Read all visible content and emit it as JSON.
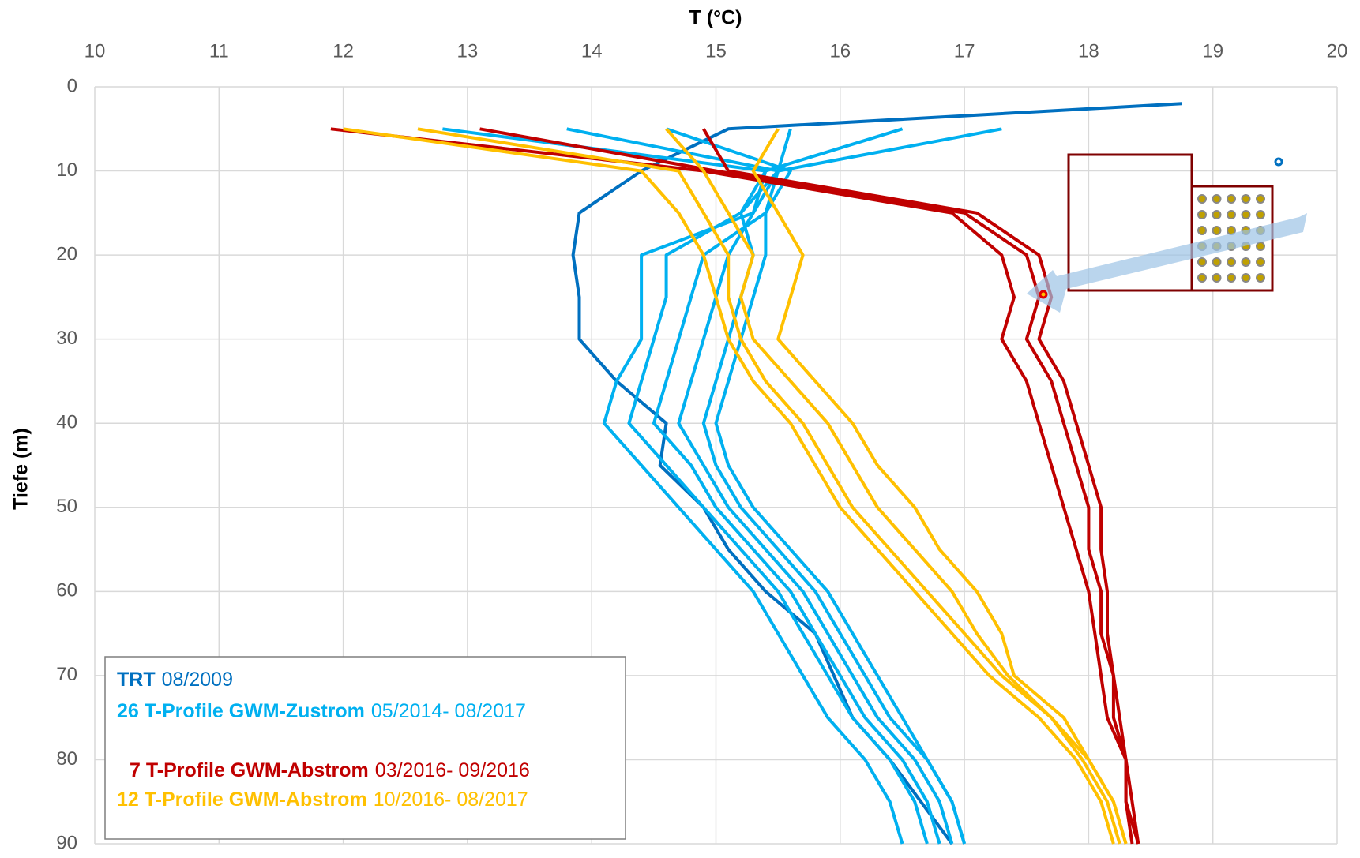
{
  "chart_data": {
    "type": "line",
    "title": "T (°C)",
    "y_label": "Tiefe (m)",
    "xlim": [
      10,
      20
    ],
    "xticks": [
      10,
      11,
      12,
      13,
      14,
      15,
      16,
      17,
      18,
      19,
      20
    ],
    "ylim": [
      0,
      90
    ],
    "yticks": [
      0,
      10,
      20,
      30,
      40,
      50,
      60,
      70,
      80,
      90
    ],
    "y_inverted": true,
    "grid": true,
    "depths": [
      2,
      5,
      10,
      15,
      20,
      25,
      30,
      35,
      40,
      45,
      50,
      55,
      60,
      65,
      70,
      75,
      80,
      85,
      90
    ],
    "series": [
      {
        "name": "TRT",
        "period": "08/2009",
        "color": "#0070c0",
        "profiles": [
          [
            18.75,
            15.1,
            14.4,
            13.9,
            13.85,
            13.9,
            13.9,
            14.2,
            14.6,
            14.55,
            14.9,
            15.1,
            15.4,
            15.8,
            15.95,
            16.1,
            16.4,
            16.65,
            16.9
          ]
        ]
      },
      {
        "name": "26 T-Profile GWM-Zustrom",
        "period": "05/2014- 08/2017",
        "color": "#00b0f0",
        "profiles": [
          [
            null,
            12.8,
            15.4,
            15.3,
            14.4,
            14.4,
            14.4,
            14.2,
            14.1,
            14.4,
            14.7,
            15.0,
            15.3,
            15.5,
            15.7,
            15.9,
            16.2,
            16.4,
            16.5
          ],
          [
            null,
            13.8,
            15.5,
            15.2,
            14.6,
            14.6,
            14.5,
            14.4,
            14.3,
            14.6,
            14.9,
            15.2,
            15.5,
            15.7,
            15.9,
            16.1,
            16.4,
            16.6,
            16.7
          ],
          [
            null,
            14.6,
            15.6,
            15.4,
            14.9,
            14.8,
            14.7,
            14.6,
            14.5,
            14.8,
            15.0,
            15.3,
            15.6,
            15.8,
            16.0,
            16.2,
            16.5,
            16.7,
            16.8
          ],
          [
            null,
            15.6,
            15.5,
            15.3,
            15.1,
            15.0,
            14.9,
            14.8,
            14.7,
            14.9,
            15.1,
            15.4,
            15.7,
            15.9,
            16.1,
            16.3,
            16.6,
            16.8,
            16.9
          ],
          [
            null,
            16.5,
            15.4,
            15.2,
            15.3,
            15.2,
            15.1,
            15.0,
            14.9,
            15.0,
            15.2,
            15.5,
            15.8,
            16.0,
            16.2,
            16.4,
            16.7,
            16.9,
            17.0
          ],
          [
            null,
            17.3,
            15.5,
            15.4,
            15.4,
            15.3,
            15.2,
            15.1,
            15.0,
            15.1,
            15.3,
            15.6,
            15.9,
            16.1,
            16.3,
            16.5,
            16.7,
            16.9,
            17.0
          ]
        ]
      },
      {
        "name": "7 T-Profile GWM-Abstrom",
        "period": "03/2016- 09/2016",
        "color": "#c00000",
        "profiles": [
          [
            null,
            11.9,
            14.9,
            16.9,
            17.3,
            17.4,
            17.3,
            17.5,
            17.6,
            17.7,
            17.8,
            17.9,
            18.0,
            18.05,
            18.1,
            18.15,
            18.3,
            18.3,
            18.35
          ],
          [
            null,
            13.1,
            15.0,
            17.0,
            17.5,
            17.6,
            17.5,
            17.7,
            17.8,
            17.9,
            18.0,
            18.0,
            18.1,
            18.1,
            18.2,
            18.2,
            18.3,
            18.3,
            18.4
          ],
          [
            null,
            14.9,
            15.1,
            17.1,
            17.6,
            17.7,
            17.6,
            17.8,
            17.9,
            18.0,
            18.1,
            18.1,
            18.15,
            18.15,
            18.2,
            18.25,
            18.3,
            18.35,
            18.4
          ]
        ]
      },
      {
        "name": "12 T-Profile GWM-Abstrom",
        "period": "10/2016- 08/2017",
        "color": "#ffc000",
        "profiles": [
          [
            null,
            12.0,
            14.4,
            14.7,
            14.9,
            15.0,
            15.1,
            15.3,
            15.6,
            15.8,
            16.0,
            16.3,
            16.6,
            16.9,
            17.2,
            17.6,
            17.9,
            18.1,
            18.2
          ],
          [
            null,
            12.6,
            14.7,
            14.9,
            15.1,
            15.1,
            15.2,
            15.4,
            15.7,
            15.9,
            16.1,
            16.4,
            16.7,
            17.0,
            17.3,
            17.7,
            17.95,
            18.15,
            18.25
          ],
          [
            null,
            14.6,
            14.9,
            15.1,
            15.3,
            15.2,
            15.3,
            15.6,
            15.9,
            16.1,
            16.3,
            16.6,
            16.9,
            17.1,
            17.35,
            17.7,
            18.0,
            18.2,
            18.3
          ],
          [
            null,
            15.5,
            15.3,
            15.5,
            15.7,
            15.6,
            15.5,
            15.8,
            16.1,
            16.3,
            16.6,
            16.8,
            17.1,
            17.3,
            17.4,
            17.8,
            18.0,
            18.2,
            18.3
          ]
        ]
      }
    ]
  }
}
